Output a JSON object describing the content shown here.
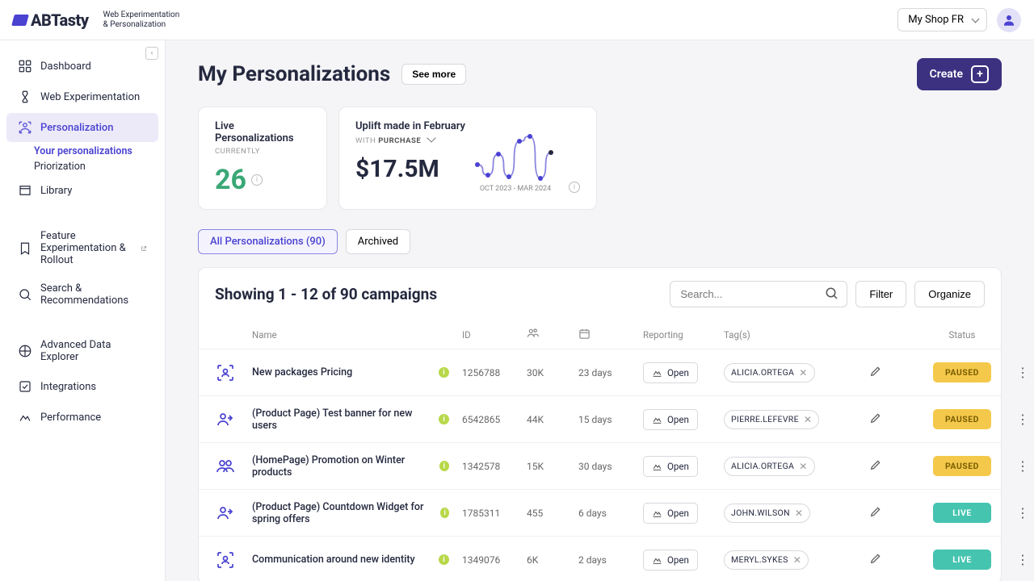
{
  "brand": {
    "name": "ABTasty",
    "tagline1": "Web Experimentation",
    "tagline2": "& Personalization"
  },
  "topbar": {
    "shop": "My Shop FR"
  },
  "sidebar": {
    "items": [
      {
        "label": "Dashboard"
      },
      {
        "label": "Web Experimentation"
      },
      {
        "label": "Personalization",
        "active": true,
        "subs": [
          {
            "label": "Your personalizations",
            "active": true
          },
          {
            "label": "Priorization"
          }
        ]
      },
      {
        "label": "Library"
      },
      {
        "label": "Feature Experimentation & Rollout",
        "external": true
      },
      {
        "label": "Search & Recommendations"
      },
      {
        "label": "Advanced Data Explorer"
      },
      {
        "label": "Integrations"
      },
      {
        "label": "Performance"
      }
    ]
  },
  "page": {
    "title": "My Personalizations",
    "see_more": "See more",
    "create": "Create"
  },
  "stats": {
    "live": {
      "title": "Live Personalizations",
      "sub": "CURRENTLY",
      "value": "26"
    },
    "uplift": {
      "title": "Uplift made in February",
      "sub_prefix": "WITH ",
      "sub_metric": "PURCHASE",
      "value": "$17.5M",
      "range": "OCT 2023 - MAR 2024"
    },
    "chart": {
      "points": [
        [
          5,
          55
        ],
        [
          18,
          68
        ],
        [
          31,
          42
        ],
        [
          44,
          70
        ],
        [
          57,
          26
        ],
        [
          70,
          20
        ],
        [
          83,
          72
        ],
        [
          96,
          40
        ]
      ],
      "line_color": "#8a84e0",
      "dot_fill": "#4a42d1",
      "last_dot_fill": "#25293f"
    }
  },
  "tabs": {
    "all": "All Personalizations (90)",
    "archived": "Archived"
  },
  "table": {
    "showing": "Showing 1 - 12 of 90 campaigns",
    "search_placeholder": "Search...",
    "filter": "Filter",
    "organize": "Organize",
    "cols": {
      "name": "Name",
      "id": "ID",
      "reporting": "Reporting",
      "tags": "Tag(s)",
      "status": "Status"
    },
    "open_label": "Open",
    "rows": [
      {
        "icon": "scan-person",
        "name": "New packages Pricing",
        "id": "1256788",
        "visitors": "30K",
        "days": "23 days",
        "tag": "ALICIA.ORTEGA",
        "status": "PAUSED"
      },
      {
        "icon": "group-arrow",
        "name": "(Product Page) Test banner for new users",
        "id": "6542865",
        "visitors": "44K",
        "days": "15 days",
        "tag": "PIERRE.LEFEVRE",
        "status": "PAUSED"
      },
      {
        "icon": "group",
        "name": "(HomePage) Promotion on Winter products",
        "id": "1342578",
        "visitors": "15K",
        "days": "30 days",
        "tag": "ALICIA.ORTEGA",
        "status": "PAUSED"
      },
      {
        "icon": "group-arrow",
        "name": "(Product Page) Countdown Widget for spring offers",
        "id": "1785311",
        "visitors": "455",
        "days": "6 days",
        "tag": "JOHN.WILSON",
        "status": "LIVE"
      },
      {
        "icon": "scan-person",
        "name": "Communication around new identity",
        "id": "1349076",
        "visitors": "6K",
        "days": "2 days",
        "tag": "MERYL.SYKES",
        "status": "LIVE"
      }
    ]
  }
}
